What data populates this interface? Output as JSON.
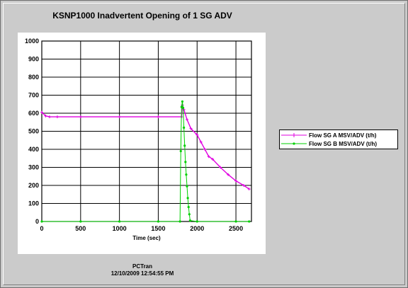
{
  "window": {
    "title": "KSNP1000 Inadvertent Opening of 1 SG ADV",
    "footer_program": "PCTran",
    "footer_timestamp": "12/10/2009 12:54:55 PM"
  },
  "chart_data": {
    "type": "line",
    "title": "KSNP1000 Inadvertent Opening of 1 SG ADV",
    "xlabel": "Time (sec)",
    "ylabel": "",
    "xlim": [
      0,
      2700
    ],
    "ylim": [
      0,
      1000
    ],
    "xticks": [
      0,
      500,
      1000,
      1500,
      2000,
      2500
    ],
    "yticks": [
      0,
      100,
      200,
      300,
      400,
      500,
      600,
      700,
      800,
      900,
      1000
    ],
    "grid": true,
    "legend_position": "right",
    "series": [
      {
        "name": "Flow SG A MSV/ADV (t/h)",
        "color": "#e000e0",
        "marker": "plus",
        "x": [
          0,
          50,
          100,
          200,
          500,
          1000,
          1500,
          1800,
          1810,
          1830,
          1870,
          1920,
          2000,
          2050,
          2100,
          2150,
          2200,
          2300,
          2400,
          2500,
          2600,
          2670
        ],
        "y": [
          605,
          585,
          580,
          580,
          580,
          580,
          580,
          580,
          645,
          620,
          565,
          515,
          480,
          440,
          400,
          360,
          345,
          300,
          260,
          225,
          200,
          180
        ]
      },
      {
        "name": "Flow SG B MSV/ADV (t/h)",
        "color": "#00d000",
        "marker": "dot",
        "x": [
          0,
          500,
          1000,
          1500,
          1780,
          1790,
          1800,
          1810,
          1820,
          1830,
          1840,
          1850,
          1860,
          1870,
          1880,
          1890,
          1900,
          1910,
          2000,
          2500,
          2670
        ],
        "y": [
          0,
          0,
          0,
          0,
          0,
          390,
          635,
          665,
          630,
          520,
          420,
          330,
          260,
          195,
          130,
          80,
          40,
          5,
          0,
          0,
          0
        ]
      }
    ]
  }
}
